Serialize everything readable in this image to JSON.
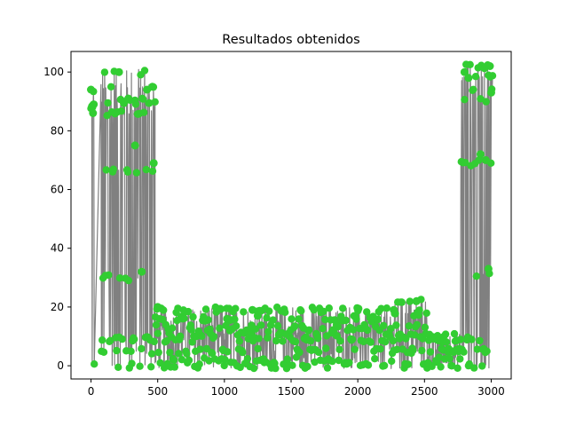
{
  "chart_data": {
    "type": "line",
    "title": "Resultados obtenidos",
    "xlabel": "",
    "ylabel": "",
    "xlim": [
      -150,
      3150
    ],
    "ylim": [
      -4.5,
      107
    ],
    "xticks": [
      0,
      500,
      1000,
      1500,
      2000,
      2500,
      3000
    ],
    "yticks": [
      0,
      20,
      40,
      60,
      80,
      100
    ],
    "grid": false,
    "colors": {
      "line": "#808080",
      "marker": "#32cd32"
    },
    "series": [
      {
        "style": "line with circle markers",
        "segments": [
          {
            "x_range": [
              0,
              25
            ],
            "levels": [
              0,
              85,
              88,
              94
            ]
          },
          {
            "x_range": [
              75,
              480
            ],
            "levels": [
              0,
              5,
              9,
              30,
              66,
              86,
              90,
              95,
              100
            ]
          },
          {
            "x_range": [
              480,
              2270
            ],
            "levels": [
              0,
              2,
              5,
              9,
              11,
              13,
              16,
              19
            ]
          },
          {
            "x_range": [
              2270,
              2520
            ],
            "levels": [
              0,
              5,
              10,
              14,
              18,
              22
            ]
          },
          {
            "x_range": [
              2520,
              2770
            ],
            "levels": [
              0,
              2,
              5,
              9,
              10
            ]
          },
          {
            "x_range": [
              2770,
              3010
            ],
            "levels": [
              0,
              5,
              9,
              31,
              69,
              90,
              94,
              98,
              102
            ]
          }
        ],
        "highlight_points": [
          [
            0,
            94
          ],
          [
            10,
            88
          ],
          [
            15,
            86
          ],
          [
            20,
            89
          ],
          [
            210,
            100
          ],
          [
            280,
            91
          ],
          [
            330,
            75
          ],
          [
            380,
            32
          ],
          [
            420,
            94
          ],
          [
            460,
            95
          ],
          [
            470,
            69
          ],
          [
            500,
            20
          ],
          [
            1020,
            16
          ],
          [
            1210,
            19
          ],
          [
            1250,
            17
          ],
          [
            2270,
            19
          ],
          [
            2440,
            22
          ],
          [
            2800,
            100
          ],
          [
            2830,
            98
          ],
          [
            2920,
            72
          ],
          [
            2960,
            70
          ],
          [
            2990,
            102
          ],
          [
            3000,
            93
          ],
          [
            2980,
            33
          ]
        ]
      }
    ]
  }
}
